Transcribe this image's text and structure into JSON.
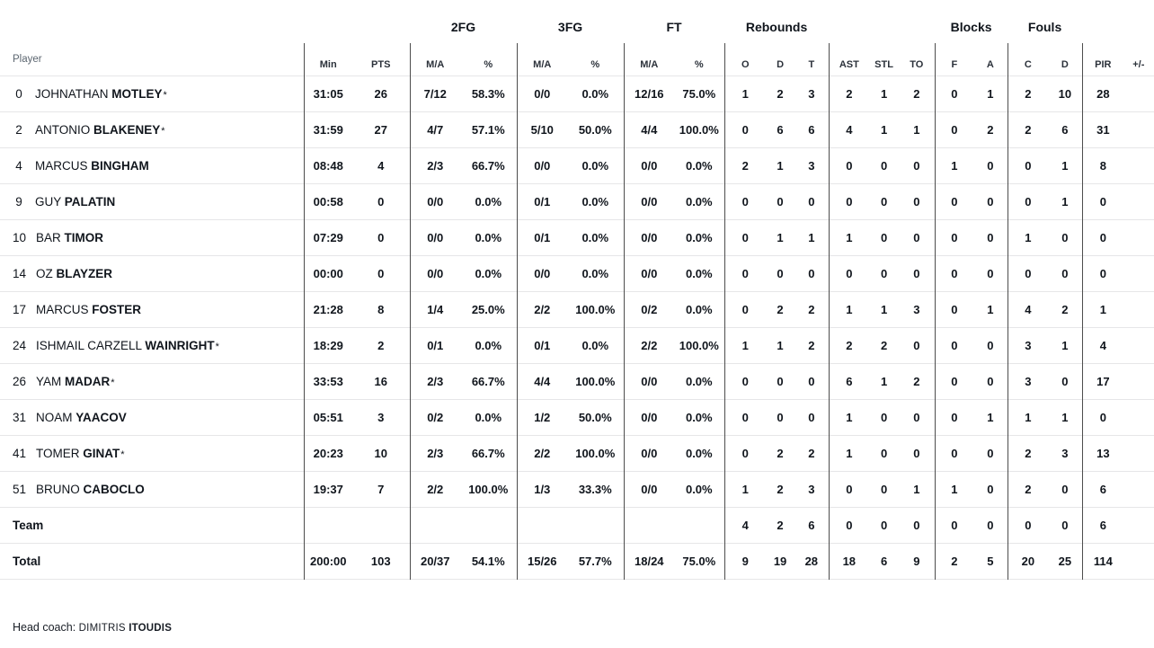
{
  "table": {
    "corner_label": "Player",
    "starter_mark": "*",
    "groups": [
      {
        "label": "",
        "span": 3
      },
      {
        "label": "2FG",
        "span": 2
      },
      {
        "label": "3FG",
        "span": 2
      },
      {
        "label": "FT",
        "span": 2
      },
      {
        "label": "Rebounds",
        "span": 3
      },
      {
        "label": "",
        "span": 3
      },
      {
        "label": "Blocks",
        "span": 2
      },
      {
        "label": "Fouls",
        "span": 2
      },
      {
        "label": "",
        "span": 2
      }
    ],
    "columns": [
      "Min",
      "PTS",
      "M/A",
      "%",
      "M/A",
      "%",
      "M/A",
      "%",
      "O",
      "D",
      "T",
      "AST",
      "STL",
      "TO",
      "F",
      "A",
      "C",
      "D",
      "PIR",
      "+/-"
    ],
    "rows": [
      {
        "num": "0",
        "name": "JOHNATHAN",
        "last": "MOTLEY",
        "starter": true,
        "stats": [
          "31:05",
          "26",
          "7/12",
          "58.3%",
          "0/0",
          "0.0%",
          "12/16",
          "75.0%",
          "1",
          "2",
          "3",
          "2",
          "1",
          "2",
          "0",
          "1",
          "2",
          "10",
          "28",
          ""
        ]
      },
      {
        "num": "2",
        "name": "ANTONIO",
        "last": "BLAKENEY",
        "starter": true,
        "stats": [
          "31:59",
          "27",
          "4/7",
          "57.1%",
          "5/10",
          "50.0%",
          "4/4",
          "100.0%",
          "0",
          "6",
          "6",
          "4",
          "1",
          "1",
          "0",
          "2",
          "2",
          "6",
          "31",
          ""
        ]
      },
      {
        "num": "4",
        "name": "MARCUS",
        "last": "BINGHAM",
        "starter": false,
        "stats": [
          "08:48",
          "4",
          "2/3",
          "66.7%",
          "0/0",
          "0.0%",
          "0/0",
          "0.0%",
          "2",
          "1",
          "3",
          "0",
          "0",
          "0",
          "1",
          "0",
          "0",
          "1",
          "8",
          ""
        ]
      },
      {
        "num": "9",
        "name": "GUY",
        "last": "PALATIN",
        "starter": false,
        "stats": [
          "00:58",
          "0",
          "0/0",
          "0.0%",
          "0/1",
          "0.0%",
          "0/0",
          "0.0%",
          "0",
          "0",
          "0",
          "0",
          "0",
          "0",
          "0",
          "0",
          "0",
          "1",
          "0",
          ""
        ]
      },
      {
        "num": "10",
        "name": "BAR",
        "last": "TIMOR",
        "starter": false,
        "stats": [
          "07:29",
          "0",
          "0/0",
          "0.0%",
          "0/1",
          "0.0%",
          "0/0",
          "0.0%",
          "0",
          "1",
          "1",
          "1",
          "0",
          "0",
          "0",
          "0",
          "1",
          "0",
          "0",
          ""
        ]
      },
      {
        "num": "14",
        "name": "OZ",
        "last": "BLAYZER",
        "starter": false,
        "stats": [
          "00:00",
          "0",
          "0/0",
          "0.0%",
          "0/0",
          "0.0%",
          "0/0",
          "0.0%",
          "0",
          "0",
          "0",
          "0",
          "0",
          "0",
          "0",
          "0",
          "0",
          "0",
          "0",
          ""
        ]
      },
      {
        "num": "17",
        "name": "MARCUS",
        "last": "FOSTER",
        "starter": false,
        "stats": [
          "21:28",
          "8",
          "1/4",
          "25.0%",
          "2/2",
          "100.0%",
          "0/2",
          "0.0%",
          "0",
          "2",
          "2",
          "1",
          "1",
          "3",
          "0",
          "1",
          "4",
          "2",
          "1",
          ""
        ]
      },
      {
        "num": "24",
        "name": "ISHMAIL CARZELL",
        "last": "WAINRIGHT",
        "starter": true,
        "stats": [
          "18:29",
          "2",
          "0/1",
          "0.0%",
          "0/1",
          "0.0%",
          "2/2",
          "100.0%",
          "1",
          "1",
          "2",
          "2",
          "2",
          "0",
          "0",
          "0",
          "3",
          "1",
          "4",
          ""
        ]
      },
      {
        "num": "26",
        "name": "YAM",
        "last": "MADAR",
        "starter": true,
        "stats": [
          "33:53",
          "16",
          "2/3",
          "66.7%",
          "4/4",
          "100.0%",
          "0/0",
          "0.0%",
          "0",
          "0",
          "0",
          "6",
          "1",
          "2",
          "0",
          "0",
          "3",
          "0",
          "17",
          ""
        ]
      },
      {
        "num": "31",
        "name": "NOAM",
        "last": "YAACOV",
        "starter": false,
        "stats": [
          "05:51",
          "3",
          "0/2",
          "0.0%",
          "1/2",
          "50.0%",
          "0/0",
          "0.0%",
          "0",
          "0",
          "0",
          "1",
          "0",
          "0",
          "0",
          "1",
          "1",
          "1",
          "0",
          ""
        ]
      },
      {
        "num": "41",
        "name": "TOMER",
        "last": "GINAT",
        "starter": true,
        "stats": [
          "20:23",
          "10",
          "2/3",
          "66.7%",
          "2/2",
          "100.0%",
          "0/0",
          "0.0%",
          "0",
          "2",
          "2",
          "1",
          "0",
          "0",
          "0",
          "0",
          "2",
          "3",
          "13",
          ""
        ]
      },
      {
        "num": "51",
        "name": "BRUNO",
        "last": "CABOCLO",
        "starter": false,
        "stats": [
          "19:37",
          "7",
          "2/2",
          "100.0%",
          "1/3",
          "33.3%",
          "0/0",
          "0.0%",
          "1",
          "2",
          "3",
          "0",
          "0",
          "1",
          "1",
          "0",
          "2",
          "0",
          "6",
          ""
        ]
      },
      {
        "label": "Team",
        "stats": [
          "",
          "",
          "",
          "",
          "",
          "",
          "",
          "",
          "4",
          "2",
          "6",
          "0",
          "0",
          "0",
          "0",
          "0",
          "0",
          "0",
          "6",
          ""
        ]
      },
      {
        "label": "Total",
        "stats": [
          "200:00",
          "103",
          "20/37",
          "54.1%",
          "15/26",
          "57.7%",
          "18/24",
          "75.0%",
          "9",
          "19",
          "28",
          "18",
          "6",
          "9",
          "2",
          "5",
          "20",
          "25",
          "114",
          ""
        ]
      }
    ]
  },
  "footer": {
    "head_coach_label": "Head coach:",
    "coach_first": "DIMITRIS",
    "coach_last": "ITOUDIS"
  }
}
